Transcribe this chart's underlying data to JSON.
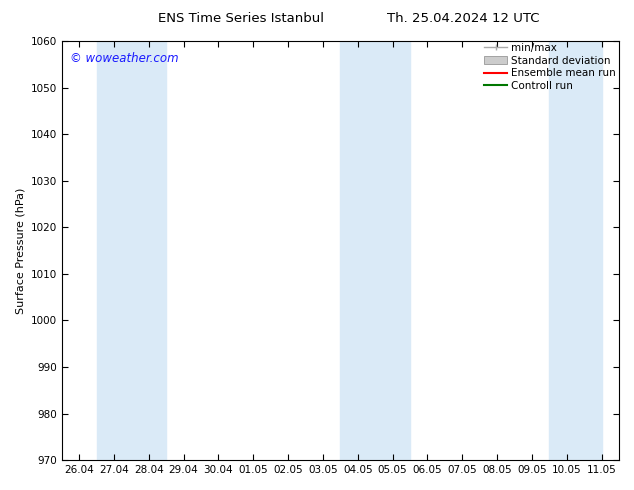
{
  "title_left": "ENS Time Series Istanbul",
  "title_right": "Th. 25.04.2024 12 UTC",
  "ylabel": "Surface Pressure (hPa)",
  "ylim": [
    970,
    1060
  ],
  "yticks": [
    970,
    980,
    990,
    1000,
    1010,
    1020,
    1030,
    1040,
    1050,
    1060
  ],
  "xtick_labels": [
    "26.04",
    "27.04",
    "28.04",
    "29.04",
    "30.04",
    "01.05",
    "02.05",
    "03.05",
    "04.05",
    "05.05",
    "06.05",
    "07.05",
    "08.05",
    "09.05",
    "10.05",
    "11.05"
  ],
  "shaded_bands": [
    {
      "xstart": 1,
      "xend": 3,
      "color": "#daeaf7"
    },
    {
      "xstart": 8,
      "xend": 10,
      "color": "#daeaf7"
    },
    {
      "xstart": 14,
      "xend": 15.5,
      "color": "#daeaf7"
    }
  ],
  "copyright_text": "© woweather.com",
  "copyright_color": "#1a1aff",
  "bg_color": "#ffffff",
  "legend_items": [
    {
      "label": "min/max",
      "color": "#aaaaaa",
      "style": "minmax"
    },
    {
      "label": "Standard deviation",
      "color": "#cccccc",
      "style": "std"
    },
    {
      "label": "Ensemble mean run",
      "color": "#ff0000",
      "style": "line"
    },
    {
      "label": "Controll run",
      "color": "#007700",
      "style": "line"
    }
  ],
  "title_fontsize": 9.5,
  "ylabel_fontsize": 8,
  "tick_fontsize": 7.5,
  "copyright_fontsize": 8.5,
  "legend_fontsize": 7.5
}
